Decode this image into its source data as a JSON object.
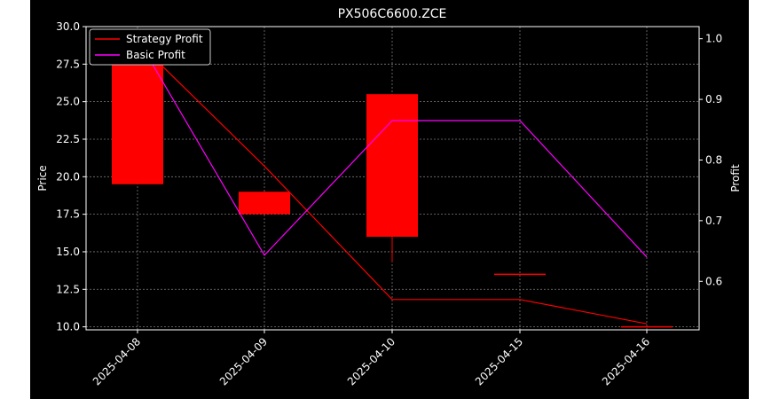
{
  "chart_data": {
    "type": "candlestick",
    "title": "PX506C6600.ZCE",
    "ylabel_left": "Price",
    "ylabel_right": "Profit",
    "xlabel": "",
    "categories": [
      "2025-04-08",
      "2025-04-09",
      "2025-04-10",
      "2025-04-15",
      "2025-04-16"
    ],
    "ylim_left": [
      9.8,
      30.0
    ],
    "ylim_right": [
      0.52,
      1.02
    ],
    "left_ticks": [
      "10.0",
      "12.5",
      "15.0",
      "17.5",
      "20.0",
      "22.5",
      "25.0",
      "27.5",
      "30.0"
    ],
    "right_ticks": [
      "0.6",
      "0.7",
      "0.8",
      "0.9",
      "1.0"
    ],
    "grid": true,
    "legend_position": "top-left",
    "candles": [
      {
        "date": "2025-04-08",
        "open": 29.5,
        "close": 19.5,
        "high": 29.5,
        "low": 19.5
      },
      {
        "date": "2025-04-09",
        "open": 19.0,
        "close": 17.5,
        "high": 19.0,
        "low": 17.5
      },
      {
        "date": "2025-04-10",
        "open": 25.5,
        "close": 16.0,
        "high": 25.5,
        "low": 14.3
      },
      {
        "date": "2025-04-15",
        "open": 13.5,
        "close": 13.5,
        "high": 13.5,
        "low": 13.5
      },
      {
        "date": "2025-04-16",
        "open": 10.0,
        "close": 10.0,
        "high": 10.0,
        "low": 10.0
      }
    ],
    "series": [
      {
        "name": "Strategy Profit",
        "axis": "right",
        "color": "#ff0000",
        "values": [
          0.995,
          0.79,
          0.57,
          0.57,
          0.53
        ]
      },
      {
        "name": "Basic Profit",
        "axis": "right",
        "color": "#ff00ff",
        "values": [
          1.0,
          0.643,
          0.865,
          0.865,
          0.64
        ]
      }
    ],
    "candle_color": "#ff0000"
  },
  "colors": {
    "background": "#000000",
    "page": "#ffffff",
    "foreground": "#ffffff",
    "grid": "#7a7a7a"
  }
}
